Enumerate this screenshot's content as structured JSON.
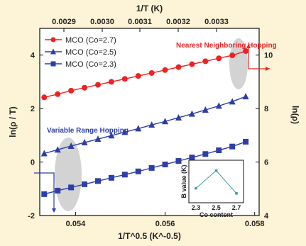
{
  "chart_data": [
    {
      "type": "line",
      "title": "",
      "xlabel": "1/T^0.5 (K^-0.5)",
      "ylabel": "ln(ρ / T)",
      "y2label": "ln(ρ)",
      "top_axis_label": "1/T (K)",
      "xlim": [
        0.0532,
        0.0581
      ],
      "ylim": [
        -2,
        5
      ],
      "y2lim": [
        4,
        11
      ],
      "x_ticks": [
        "0.054",
        "0.056",
        "0.058"
      ],
      "x_tick_values": [
        0.054,
        0.056,
        0.058
      ],
      "y_ticks": [
        "-2",
        "0",
        "2",
        "4"
      ],
      "y_tick_values": [
        -2,
        0,
        2,
        4
      ],
      "y2_ticks": [
        "4",
        "6",
        "8",
        "10"
      ],
      "y2_tick_values": [
        4,
        6,
        8,
        10
      ],
      "top_ticks": [
        "0.0029",
        "0.0030",
        "0.0031",
        "0.0032",
        "0.0033"
      ],
      "top_tick_values": [
        0.0029,
        0.003,
        0.0031,
        0.0032,
        0.0033
      ],
      "grid": false,
      "legend_position": "top-left",
      "series": [
        {
          "name": "MCO (Co=2.7)",
          "color": "#ee2222",
          "marker": "circle",
          "x": [
            0.0533,
            0.0536,
            0.0539,
            0.0542,
            0.0545,
            0.0548,
            0.0551,
            0.0554,
            0.0557,
            0.056,
            0.0563,
            0.0566,
            0.0569,
            0.0572,
            0.0575,
            0.0578
          ],
          "y": [
            2.42,
            2.54,
            2.67,
            2.78,
            2.89,
            3.0,
            3.11,
            3.22,
            3.33,
            3.44,
            3.55,
            3.66,
            3.77,
            3.88,
            3.99,
            4.15
          ]
        },
        {
          "name": "MCO (Co=2.5)",
          "color": "#2c3fa8",
          "marker": "triangle",
          "x": [
            0.0533,
            0.0536,
            0.0539,
            0.0542,
            0.0545,
            0.0548,
            0.0551,
            0.0554,
            0.0557,
            0.056,
            0.0563,
            0.0566,
            0.0569,
            0.0572,
            0.0575,
            0.0578
          ],
          "y": [
            0.32,
            0.46,
            0.6,
            0.73,
            0.86,
            0.99,
            1.12,
            1.25,
            1.39,
            1.52,
            1.66,
            1.8,
            1.95,
            2.1,
            2.26,
            2.45
          ]
        },
        {
          "name": "MCO (Co=2.3)",
          "color": "#2c3fa8",
          "marker": "square",
          "x": [
            0.0533,
            0.0536,
            0.0539,
            0.0542,
            0.0545,
            0.0548,
            0.0551,
            0.0554,
            0.0557,
            0.056,
            0.0563,
            0.0566,
            0.0569,
            0.0572,
            0.0575,
            0.0578
          ],
          "y": [
            -1.2,
            -1.07,
            -0.95,
            -0.83,
            -0.71,
            -0.59,
            -0.47,
            -0.35,
            -0.22,
            -0.09,
            0.04,
            0.17,
            0.3,
            0.44,
            0.58,
            0.76
          ]
        }
      ],
      "annotations": {
        "nearest_neighbor": {
          "text": "Nearest Neighboring Hopping",
          "color": "#ee2222"
        },
        "variable_range": {
          "text": "Variable Range Hopping",
          "color": "#2c3fa8"
        }
      }
    },
    {
      "type": "line",
      "title": "",
      "xlabel": "Co content",
      "ylabel": "B value (K)",
      "categories": [
        "2.3",
        "2.5",
        "2.7"
      ],
      "series": [
        {
          "name": "",
          "color": "#3aa0a0",
          "values": [
            0.3,
            0.82,
            0.15
          ]
        }
      ],
      "ylim": [
        0,
        1
      ]
    }
  ]
}
